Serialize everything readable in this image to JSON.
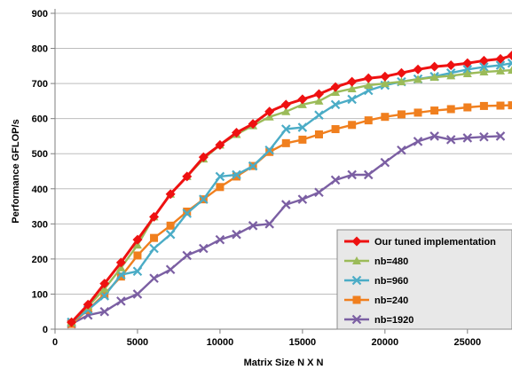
{
  "chart_data": {
    "type": "line",
    "title": "",
    "xlabel": "Matrix Size N X N",
    "ylabel": "Performance GFLOP/s",
    "xlim": [
      0,
      27700
    ],
    "ylim": [
      0,
      900
    ],
    "xticks": [
      0,
      5000,
      10000,
      15000,
      20000,
      25000
    ],
    "yticks": [
      0,
      100,
      200,
      300,
      400,
      500,
      600,
      700,
      800,
      900
    ],
    "grid": true,
    "legend_position": "bottom-right",
    "series": [
      {
        "name": "Our tuned implementation",
        "color": "#ee1111",
        "marker": "diamond",
        "x": [
          1000,
          2000,
          3000,
          4000,
          5000,
          6000,
          7000,
          8000,
          9000,
          10000,
          11000,
          12000,
          13000,
          14000,
          15000,
          16000,
          17000,
          18000,
          19000,
          20000,
          21000,
          22000,
          23000,
          24000,
          25000,
          26000,
          27000,
          27700
        ],
        "values": [
          20,
          70,
          130,
          190,
          255,
          320,
          385,
          435,
          490,
          525,
          560,
          585,
          620,
          640,
          655,
          670,
          690,
          705,
          715,
          720,
          730,
          740,
          748,
          752,
          758,
          765,
          770,
          780
        ]
      },
      {
        "name": "nb=480",
        "color": "#9bbb59",
        "marker": "triangle",
        "x": [
          1000,
          2000,
          3000,
          4000,
          5000,
          6000,
          7000,
          8000,
          9000,
          10000,
          11000,
          12000,
          13000,
          14000,
          15000,
          16000,
          17000,
          18000,
          19000,
          20000,
          21000,
          22000,
          23000,
          24000,
          25000,
          26000,
          27000,
          27700
        ],
        "values": [
          20,
          65,
          115,
          175,
          240,
          320,
          385,
          435,
          485,
          525,
          555,
          580,
          605,
          620,
          640,
          650,
          675,
          685,
          695,
          700,
          705,
          712,
          718,
          722,
          728,
          733,
          736,
          738
        ]
      },
      {
        "name": "nb=960",
        "color": "#4bacc6",
        "marker": "x",
        "x": [
          1000,
          2000,
          3000,
          4000,
          5000,
          6000,
          7000,
          8000,
          9000,
          10000,
          11000,
          12000,
          13000,
          14000,
          15000,
          16000,
          17000,
          18000,
          19000,
          20000,
          21000,
          22000,
          23000,
          24000,
          25000,
          26000,
          27000,
          27700
        ],
        "values": [
          20,
          55,
          95,
          155,
          165,
          230,
          270,
          330,
          370,
          435,
          440,
          465,
          510,
          570,
          575,
          610,
          640,
          655,
          680,
          695,
          705,
          713,
          720,
          730,
          740,
          747,
          752,
          758
        ]
      },
      {
        "name": "nb=240",
        "color": "#f07f1e",
        "marker": "square",
        "x": [
          1000,
          2000,
          3000,
          4000,
          5000,
          6000,
          7000,
          8000,
          9000,
          10000,
          11000,
          12000,
          13000,
          14000,
          15000,
          16000,
          17000,
          18000,
          19000,
          20000,
          21000,
          22000,
          23000,
          24000,
          25000,
          26000,
          27000,
          27700
        ],
        "values": [
          15,
          55,
          100,
          150,
          210,
          260,
          295,
          335,
          370,
          405,
          435,
          465,
          505,
          530,
          540,
          555,
          570,
          582,
          595,
          605,
          612,
          617,
          623,
          627,
          632,
          636,
          637,
          638
        ]
      },
      {
        "name": "nb=1920",
        "color": "#7b5fa3",
        "marker": "x",
        "x": [
          1000,
          2000,
          3000,
          4000,
          5000,
          6000,
          7000,
          8000,
          9000,
          10000,
          11000,
          12000,
          13000,
          14000,
          15000,
          16000,
          17000,
          18000,
          19000,
          20000,
          21000,
          22000,
          23000,
          24000,
          25000,
          26000,
          27000
        ],
        "values": [
          15,
          40,
          50,
          80,
          100,
          145,
          170,
          210,
          230,
          255,
          270,
          295,
          300,
          355,
          370,
          390,
          425,
          440,
          440,
          475,
          510,
          535,
          550,
          540,
          545,
          548,
          550
        ]
      }
    ]
  }
}
